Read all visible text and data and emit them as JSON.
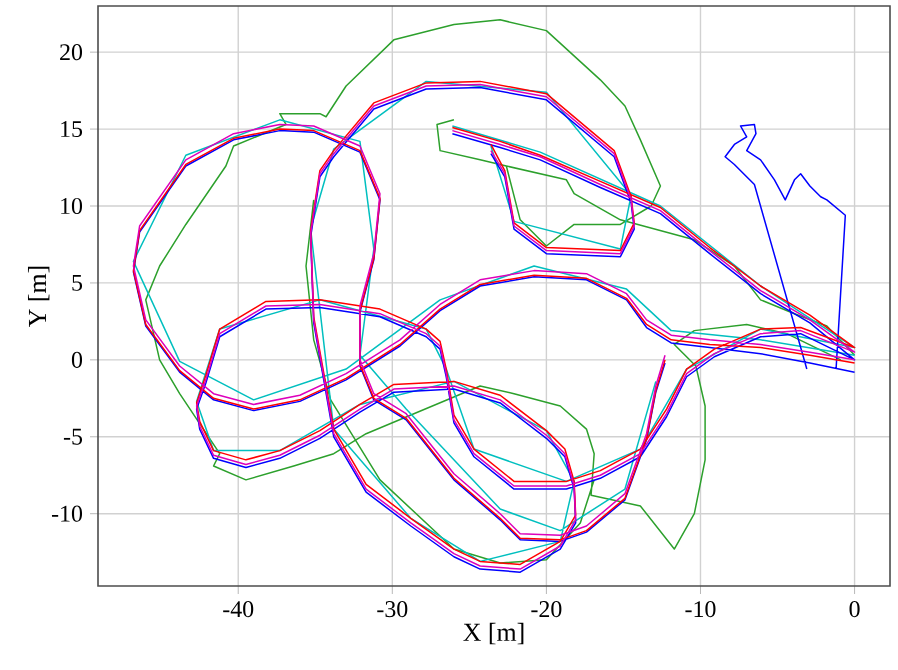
{
  "chart_data": {
    "type": "line",
    "xlabel": "X [m]",
    "ylabel": "Y [m]",
    "xlim": [
      -49.1,
      2.3
    ],
    "ylim": [
      -14.7,
      23.0
    ],
    "xticks": [
      -40,
      -30,
      -20,
      -10,
      0
    ],
    "yticks": [
      -10,
      -5,
      0,
      5,
      10,
      15,
      20
    ],
    "grid": true,
    "line_style": "solid",
    "series": [
      {
        "color": "#2ca02c",
        "x": [
          0.0,
          -1.8,
          -3.9,
          -6.1,
          -7.8,
          -10.4,
          -15.2,
          -18.2,
          -18.7,
          -22.6,
          -24.3,
          -26.9,
          -27.1,
          -26.0,
          null,
          -0.9,
          -4.4,
          -7.0,
          -10.4,
          -11.7,
          -10.3,
          -9.7,
          -9.7,
          -10.4,
          -11.7,
          -13.9,
          -17.1,
          -16.9,
          -17.4,
          -19.1,
          -22.1,
          -24.3,
          -28.6,
          -31.7,
          -33.8,
          -36.4,
          -39.5,
          -41.6,
          -41.2,
          -43.8,
          -45.1,
          -46.0,
          -45.1,
          -43.4,
          -40.8,
          -40.3,
          -36.9,
          -37.3,
          -34.7,
          -34.3,
          -33.0,
          -29.9,
          -26.0,
          -23.0,
          -20.0,
          -16.5,
          -14.9,
          -13.9,
          -12.6,
          -13.2,
          -15.2,
          -18.2,
          -20.0,
          -21.7,
          -22.6,
          null,
          -35.1,
          -35.6,
          -35.1,
          -34.0,
          -30.8,
          -26.0,
          -23.0,
          -20.0,
          -17.8,
          -16.9
        ],
        "values": [
          0.3,
          2.2,
          3.0,
          3.9,
          6.1,
          7.8,
          9.1,
          10.8,
          11.7,
          12.6,
          13.0,
          13.6,
          15.3,
          15.6,
          null,
          0.0,
          1.7,
          2.3,
          1.9,
          1.0,
          -0.4,
          -3.0,
          -6.5,
          -10.0,
          -12.3,
          -9.5,
          -8.8,
          -6.1,
          -4.5,
          -3.0,
          -2.2,
          -1.7,
          -3.5,
          -4.8,
          -6.1,
          -6.9,
          -7.8,
          -6.9,
          -6.1,
          -2.2,
          0.0,
          3.9,
          6.1,
          8.8,
          12.6,
          13.9,
          15.3,
          16.0,
          16.0,
          15.8,
          17.8,
          20.8,
          21.8,
          22.1,
          21.4,
          18.2,
          16.5,
          14.3,
          11.3,
          10.0,
          8.8,
          8.8,
          7.4,
          9.1,
          12.6,
          null,
          10.4,
          6.1,
          1.3,
          -2.6,
          -7.8,
          -12.3,
          -13.2,
          -13.0,
          -10.6,
          -7.8
        ]
      },
      {
        "color": "#00bfbf",
        "x": [
          -26.1,
          -20.4,
          -12.6,
          -6.1,
          0.0,
          -6.1,
          -10.9,
          -13.9,
          -18.7,
          -24.7,
          -26.5,
          -27.8,
          -34.7,
          -41.2,
          -42.7,
          -41.6,
          -37.3,
          -32.1,
          -26.0,
          -20.0,
          -18.2,
          -19.1,
          -24.3,
          -28.8,
          -33.8,
          -35.3,
          -33.8,
          -27.8,
          -20.0,
          -14.5,
          -15.2,
          -22.1,
          -23.6,
          null,
          0.0,
          -6.1,
          -11.9,
          -14.8,
          -20.8,
          -26.9,
          -33.0,
          -39.0,
          -43.8,
          -46.8,
          -43.4,
          -37.3,
          -32.1,
          -31.2,
          -32.1,
          -29.1,
          -23.0,
          -19.1,
          -14.9,
          -12.9
        ],
        "values": [
          15.2,
          13.5,
          10.0,
          4.8,
          0.8,
          2.0,
          -0.6,
          -5.8,
          -7.9,
          -5.8,
          -0.6,
          2.0,
          3.9,
          2.0,
          -2.7,
          -5.9,
          -5.9,
          -2.9,
          -1.4,
          -4.6,
          -7.9,
          -11.8,
          -13.1,
          -10.3,
          -4.5,
          8.5,
          13.7,
          18.1,
          17.4,
          10.7,
          7.2,
          9.0,
          13.9,
          null,
          0.3,
          1.3,
          1.9,
          4.6,
          6.1,
          3.9,
          -0.6,
          -2.6,
          -0.1,
          6.4,
          13.3,
          15.6,
          14.2,
          7.2,
          0.3,
          -3.2,
          -9.7,
          -11.1,
          -8.4,
          -1.4
        ]
      },
      {
        "color": "#0000ff",
        "x": [
          -26.1,
          -23.0,
          -20.4,
          -16.5,
          -12.6,
          -9.4,
          -6.1,
          -2.9,
          0.0,
          -3.5,
          -6.1,
          -9.1,
          -10.9,
          -12.2,
          -13.9,
          -16.5,
          -18.7,
          -22.1,
          -24.7,
          -26.0,
          -26.5,
          -26.9,
          -27.8,
          -30.8,
          -34.7,
          -38.2,
          -41.2,
          -42.1,
          -42.7,
          -42.5,
          -41.6,
          -39.5,
          -37.3,
          -34.7,
          -32.1,
          -29.9,
          -26.0,
          -23.0,
          -20.0,
          -18.8,
          -18.2,
          -18.1,
          -19.1,
          -21.7,
          -24.3,
          -26.0,
          -28.8,
          -31.7,
          -33.8,
          -35.1,
          -35.3,
          -34.7,
          -33.8,
          -31.2,
          -27.8,
          -24.3,
          -20.0,
          -15.6,
          -14.5,
          -14.3,
          -15.2,
          -20.0,
          -22.1,
          -22.7,
          -23.6,
          null,
          -3.1,
          -6.5,
          -7.8,
          -8.4,
          -7.8,
          -7.0,
          -7.4,
          -6.5,
          -6.4,
          -7.0,
          -6.1,
          -5.2,
          -4.5,
          -3.9,
          -3.5,
          -2.9,
          -2.2,
          -1.8,
          -0.6,
          -1.2,
          null,
          0.0,
          -2.9,
          -6.1,
          -9.4,
          -11.9,
          -13.5,
          -14.8,
          -17.4,
          -20.8,
          -24.3,
          -26.9,
          -29.5,
          -33.0,
          -36.0,
          -39.0,
          -41.6,
          -43.8,
          -46.0,
          -46.8,
          -46.4,
          -43.4,
          -40.3,
          -37.3,
          -35.1,
          -32.1,
          -30.8,
          -31.2,
          -32.1,
          -32.1,
          -31.2,
          -29.1,
          -26.0,
          -23.0,
          -21.7,
          -19.1,
          -17.4,
          -14.9,
          -13.5,
          -12.9,
          -12.3
        ],
        "values": [
          14.7,
          13.8,
          13.0,
          11.2,
          9.5,
          6.9,
          4.3,
          2.4,
          0.0,
          1.7,
          1.5,
          0.2,
          -1.1,
          -3.7,
          -6.3,
          -7.7,
          -8.4,
          -8.4,
          -6.3,
          -4.1,
          -1.1,
          0.7,
          1.5,
          2.8,
          3.4,
          3.3,
          1.5,
          -1.5,
          -3.2,
          -4.5,
          -6.4,
          -7.0,
          -6.4,
          -5.1,
          -3.4,
          -2.1,
          -1.9,
          -2.8,
          -5.1,
          -6.3,
          -8.4,
          -10.6,
          -12.3,
          -13.8,
          -13.6,
          -12.8,
          -10.8,
          -8.6,
          -5.0,
          2.4,
          8.0,
          11.9,
          13.2,
          16.3,
          17.6,
          17.7,
          16.9,
          13.2,
          10.2,
          8.5,
          6.7,
          6.9,
          8.5,
          11.9,
          13.4,
          null,
          -0.6,
          11.4,
          12.7,
          13.2,
          14.0,
          14.5,
          15.2,
          15.3,
          14.7,
          13.6,
          13.0,
          11.7,
          10.4,
          11.7,
          12.1,
          11.3,
          10.6,
          10.4,
          9.4,
          -0.6,
          null,
          -0.8,
          -0.2,
          0.4,
          0.8,
          1.1,
          2.1,
          3.9,
          5.2,
          5.4,
          4.8,
          3.2,
          0.9,
          -1.3,
          -2.7,
          -3.3,
          -2.6,
          -0.8,
          2.2,
          5.7,
          8.3,
          12.6,
          14.3,
          14.9,
          14.8,
          13.5,
          10.4,
          6.5,
          3.1,
          -0.4,
          -2.6,
          -3.9,
          -7.8,
          -10.4,
          -11.7,
          -11.8,
          -11.2,
          -9.1,
          -5.2,
          -2.1,
          -0.2
        ]
      },
      {
        "color": "#ff0000",
        "x": [
          -26.1,
          -23.0,
          -20.4,
          -16.5,
          -12.6,
          -9.4,
          -6.1,
          -2.9,
          0.0,
          -3.5,
          -6.1,
          -9.1,
          -10.9,
          -12.2,
          -13.9,
          -16.5,
          -18.7,
          -22.1,
          -24.7,
          -26.0,
          -26.5,
          -26.9,
          -27.8,
          -30.8,
          -34.7,
          -38.2,
          -41.2,
          -42.1,
          -42.7,
          -42.5,
          -41.6,
          -39.5,
          -37.3,
          -34.7,
          -32.1,
          -29.9,
          -26.0,
          -23.0,
          -20.0,
          -18.8,
          -18.2,
          -18.1,
          -19.1,
          -21.7,
          -24.3,
          -26.0,
          -28.8,
          -31.7,
          -33.8,
          -35.1,
          -35.3,
          -34.7,
          -33.8,
          -31.2,
          -27.8,
          -24.3,
          -20.0,
          -15.6,
          -14.5,
          -14.3,
          -15.2,
          -20.0,
          -22.1,
          -22.7,
          -23.6,
          null,
          0.0,
          -2.9,
          -6.1,
          -9.4,
          -11.9,
          -13.5,
          -14.8,
          -17.4,
          -20.8,
          -24.3,
          -26.9,
          -29.5,
          -33.0,
          -36.0,
          -39.0,
          -41.6,
          -43.8,
          -46.0,
          -46.8,
          -46.4,
          -43.4,
          -40.3,
          -37.3,
          -35.1,
          -32.1,
          -30.8,
          -31.2,
          -32.1,
          -32.1,
          -31.2,
          -29.1,
          -26.0,
          -23.0,
          -21.7,
          -19.1,
          -17.4,
          -14.9,
          -13.5,
          -12.9,
          -12.3
        ],
        "values": [
          15.1,
          14.2,
          13.3,
          11.6,
          9.9,
          7.3,
          4.8,
          2.9,
          0.8,
          2.1,
          2.0,
          0.7,
          -0.6,
          -3.2,
          -5.8,
          -7.2,
          -7.9,
          -7.9,
          -5.8,
          -3.6,
          -0.6,
          1.2,
          2.0,
          3.3,
          3.9,
          3.8,
          2.0,
          -1.0,
          -2.8,
          -4.0,
          -5.9,
          -6.5,
          -5.9,
          -4.6,
          -2.9,
          -1.6,
          -1.4,
          -2.3,
          -4.6,
          -5.8,
          -7.9,
          -10.1,
          -11.8,
          -13.3,
          -13.1,
          -12.3,
          -10.3,
          -8.1,
          -4.5,
          2.8,
          8.4,
          12.3,
          13.6,
          16.7,
          18.0,
          18.1,
          17.3,
          13.6,
          10.6,
          8.9,
          7.1,
          7.3,
          8.9,
          12.3,
          14.0,
          null,
          -0.2,
          0.3,
          0.8,
          1.0,
          1.3,
          2.3,
          4.0,
          5.3,
          5.5,
          4.9,
          3.3,
          1.0,
          -1.2,
          -2.6,
          -3.2,
          -2.5,
          -0.7,
          2.3,
          5.8,
          8.4,
          12.7,
          14.4,
          15.0,
          14.9,
          13.6,
          10.5,
          6.6,
          3.2,
          -0.3,
          -2.5,
          -3.8,
          -7.7,
          -10.3,
          -11.6,
          -11.7,
          -11.1,
          -9.0,
          -5.1,
          -2.0,
          0.0
        ]
      },
      {
        "color": "#dd00bb",
        "x": [
          -26.1,
          -23.0,
          -20.4,
          -16.5,
          -12.6,
          -9.4,
          -6.1,
          -2.9,
          0.0,
          -3.5,
          -6.1,
          -9.1,
          -10.9,
          -12.2,
          -13.9,
          -16.5,
          -18.7,
          -22.1,
          -24.7,
          -26.0,
          -26.5,
          -26.9,
          -27.8,
          -30.8,
          -34.7,
          -38.2,
          -41.2,
          -42.1,
          -42.7,
          -42.5,
          -41.6,
          -39.5,
          -37.3,
          -34.7,
          -32.1,
          -29.9,
          -26.0,
          -23.0,
          -20.0,
          -18.8,
          -18.2,
          -18.1,
          -19.1,
          -21.7,
          -24.3,
          -26.0,
          -28.8,
          -31.7,
          -33.8,
          -35.1,
          -35.3,
          -34.7,
          -33.8,
          -31.2,
          -27.8,
          -24.3,
          -20.0,
          -15.6,
          -14.5,
          -14.3,
          -15.2,
          -20.0,
          -22.1,
          -22.7,
          -23.6,
          null,
          0.0,
          -2.9,
          -6.1,
          -9.4,
          -11.9,
          -13.5,
          -14.8,
          -17.4,
          -20.8,
          -24.3,
          -26.9,
          -29.5,
          -33.0,
          -36.0,
          -39.0,
          -41.6,
          -43.8,
          -46.0,
          -46.8,
          -46.4,
          -43.4,
          -40.3,
          -37.3,
          -35.1,
          -32.1,
          -30.8,
          -31.2,
          -32.1,
          -32.1,
          -31.2,
          -29.1,
          -26.0,
          -23.0,
          -21.7,
          -19.1,
          -17.4,
          -14.9,
          -13.5,
          -12.9,
          -12.3
        ],
        "values": [
          14.9,
          14.0,
          13.2,
          11.4,
          9.7,
          7.1,
          4.5,
          2.6,
          0.5,
          1.9,
          1.7,
          0.4,
          -0.9,
          -3.5,
          -6.1,
          -7.5,
          -8.2,
          -8.2,
          -6.1,
          -3.9,
          -0.9,
          0.9,
          1.7,
          3.0,
          3.6,
          3.5,
          1.7,
          -1.3,
          -3.0,
          -4.3,
          -6.2,
          -6.8,
          -6.2,
          -4.9,
          -3.2,
          -1.9,
          -1.7,
          -2.6,
          -4.9,
          -6.1,
          -8.2,
          -10.4,
          -12.1,
          -13.6,
          -13.4,
          -12.6,
          -10.6,
          -8.4,
          -4.8,
          2.6,
          8.2,
          12.1,
          13.4,
          16.5,
          17.8,
          17.9,
          17.1,
          13.4,
          10.4,
          8.7,
          6.9,
          7.1,
          8.7,
          12.1,
          13.6,
          null,
          0.0,
          0.5,
          1.0,
          1.3,
          1.6,
          2.6,
          4.3,
          5.6,
          5.8,
          5.2,
          3.6,
          1.3,
          -0.9,
          -2.3,
          -2.9,
          -2.2,
          -0.4,
          2.6,
          6.1,
          8.7,
          13.0,
          14.7,
          15.3,
          15.2,
          13.9,
          10.8,
          6.9,
          3.5,
          0.0,
          -2.2,
          -3.5,
          -7.4,
          -10.0,
          -11.3,
          -11.4,
          -10.8,
          -8.7,
          -4.8,
          -1.7,
          0.3
        ]
      }
    ]
  }
}
